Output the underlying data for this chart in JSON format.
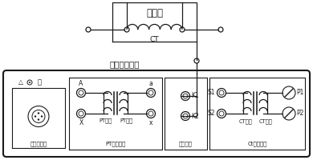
{
  "title_top": "二次側",
  "label_ct": "CT",
  "label_shell": "接互感器外殼",
  "label_external": "外接測量口",
  "label_pt_polarity": "PT變比極性",
  "label_pt1": "PT一次",
  "label_pt2": "PT二次",
  "label_va": "伏安特性",
  "label_ct_polarity": "Ct變比極性",
  "label_ct2": "CT二次",
  "label_ct1": "CT一次",
  "label_A": "A",
  "label_X": "X",
  "label_a": "a",
  "label_x": "x",
  "label_K1": "K1",
  "label_K2": "K2",
  "label_S1": "S1",
  "label_S2": "S2",
  "label_P1": "P1",
  "label_P2": "P2",
  "bg_color": "#ffffff",
  "line_color": "#1a1a1a"
}
